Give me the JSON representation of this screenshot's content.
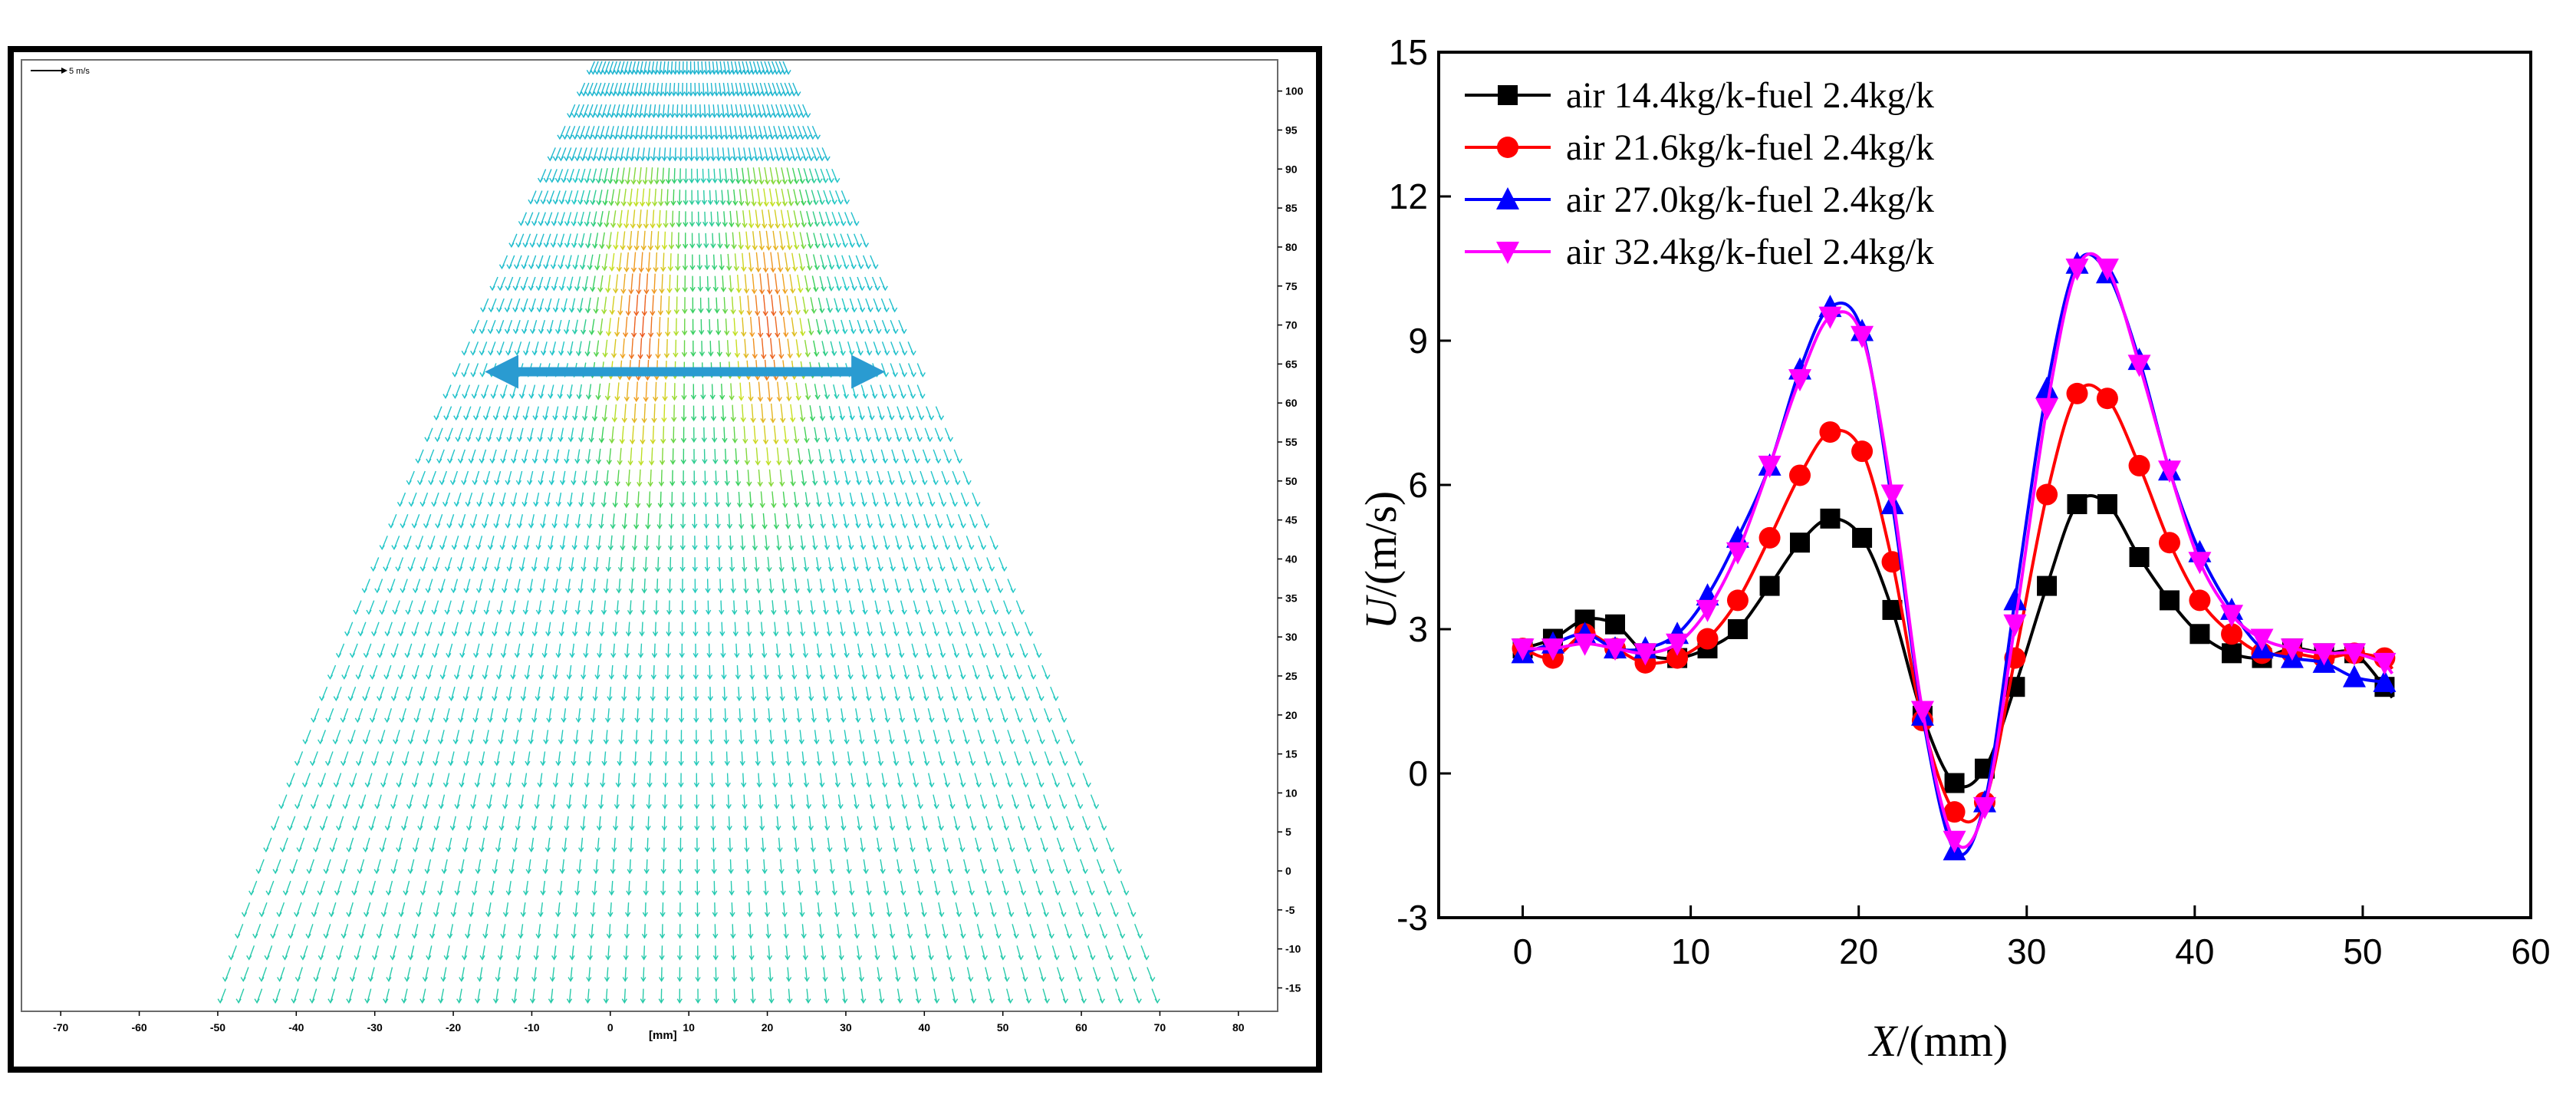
{
  "chart_data": [
    {
      "type": "vector-field",
      "title": "",
      "scale_label": "5 m/s",
      "xlabel": "[mm]",
      "xlim": [
        -75,
        85
      ],
      "ylim": [
        -18,
        104
      ],
      "x_ticks": [
        -70,
        -60,
        -50,
        -40,
        -30,
        -20,
        -10,
        0,
        10,
        20,
        30,
        40,
        50,
        60,
        70,
        80
      ],
      "y_ticks": [
        100,
        95,
        90,
        85,
        80,
        75,
        70,
        65,
        60,
        55,
        50,
        45,
        40,
        35,
        30,
        25,
        20,
        15,
        10,
        5,
        0,
        -5,
        -10,
        -15
      ],
      "grid": false,
      "annotation": {
        "type": "double-arrow",
        "x_from": -16,
        "x_to": 35,
        "y": 64,
        "color": "#2a9bd1"
      },
      "colormap": [
        "#1f3fbf",
        "#1e90e0",
        "#22c8c8",
        "#3ad05a",
        "#c8e020",
        "#f0a020",
        "#e82020"
      ],
      "field_extent": {
        "y_top": 103,
        "y_bottom": -16,
        "x_half_width_top": 12,
        "x_half_width_bottom": 59,
        "x_center": 10
      },
      "jet_cores": [
        {
          "x": 4,
          "y_from": 40,
          "y_to": 85,
          "peak_speed_m_s": 6
        },
        {
          "x": 20,
          "y_from": 40,
          "y_to": 85,
          "peak_speed_m_s": 7
        }
      ]
    },
    {
      "type": "line",
      "title": "",
      "xlabel_italic": "X",
      "xlabel": "/(mm)",
      "ylabel_italic": "U",
      "ylabel": "/(m/s)",
      "xlim": [
        -5,
        60
      ],
      "ylim": [
        -3,
        15
      ],
      "x_ticks": [
        0,
        10,
        20,
        30,
        40,
        50,
        60
      ],
      "y_ticks": [
        -3,
        0,
        3,
        6,
        9,
        12,
        15
      ],
      "grid": false,
      "legend_position": "top-left",
      "x": [
        0,
        1.8,
        3.7,
        5.5,
        7.3,
        9.2,
        11,
        12.8,
        14.7,
        16.5,
        18.3,
        20.2,
        22,
        23.8,
        25.7,
        27.5,
        29.3,
        31.2,
        33,
        34.8,
        36.7,
        38.5,
        40.3,
        42.2,
        44,
        45.8,
        47.7,
        49.5,
        51.3
      ],
      "series": [
        {
          "name": "air 14.4kg/k-fuel 2.4kg/k",
          "color": "#000000",
          "marker": "square",
          "values": [
            2.6,
            2.8,
            3.2,
            3.1,
            2.5,
            2.4,
            2.6,
            3.0,
            3.9,
            4.8,
            5.3,
            4.9,
            3.4,
            1.2,
            -0.2,
            0.1,
            1.8,
            3.9,
            5.6,
            5.6,
            4.5,
            3.6,
            2.9,
            2.5,
            2.4,
            2.6,
            2.5,
            2.5,
            1.8
          ]
        },
        {
          "name": "air 21.6kg/k-fuel 2.4kg/k",
          "color": "#ff0000",
          "marker": "circle",
          "values": [
            2.6,
            2.4,
            2.9,
            2.6,
            2.3,
            2.4,
            2.8,
            3.6,
            4.9,
            6.2,
            7.1,
            6.7,
            4.4,
            1.1,
            -0.8,
            -0.6,
            2.4,
            5.8,
            7.9,
            7.8,
            6.4,
            4.8,
            3.6,
            2.9,
            2.5,
            2.5,
            2.4,
            2.5,
            2.4
          ]
        },
        {
          "name": "air 27.0kg/k-fuel 2.4kg/k",
          "color": "#0000ff",
          "marker": "triangle-up",
          "values": [
            2.5,
            2.7,
            2.9,
            2.6,
            2.6,
            2.9,
            3.7,
            4.9,
            6.4,
            8.4,
            9.7,
            9.2,
            5.6,
            1.2,
            -1.6,
            -0.6,
            3.6,
            8.0,
            10.6,
            10.4,
            8.6,
            6.3,
            4.6,
            3.4,
            2.6,
            2.4,
            2.3,
            2.0,
            1.9
          ]
        },
        {
          "name": "air 32.4kg/k-fuel 2.4kg/k",
          "color": "#ff00ff",
          "marker": "triangle-down",
          "values": [
            2.6,
            2.6,
            2.7,
            2.6,
            2.5,
            2.7,
            3.4,
            4.6,
            6.4,
            8.2,
            9.5,
            9.1,
            5.8,
            1.3,
            -1.4,
            -0.7,
            3.1,
            7.6,
            10.5,
            10.5,
            8.5,
            6.3,
            4.4,
            3.3,
            2.8,
            2.6,
            2.5,
            2.5,
            2.3
          ]
        }
      ]
    }
  ]
}
